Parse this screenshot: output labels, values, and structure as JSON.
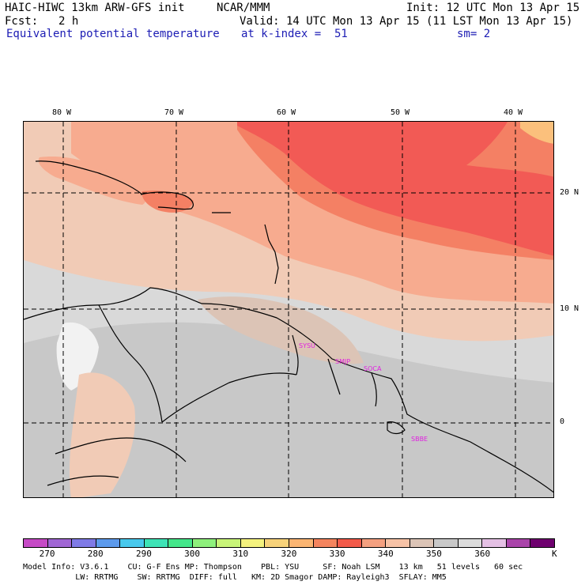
{
  "header": {
    "model_title": "HAIC-HIWC 13km ARW-GFS init",
    "org": "NCAR/MMM",
    "init": "Init: 12 UTC Mon 13 Apr 15",
    "fcst_label": "Fcst:",
    "fcst_value": "2 h",
    "valid": "Valid: 14 UTC Mon 13 Apr 15 (11 LST Mon 13 Apr 15)",
    "field": "Equivalent potential temperature",
    "level": "at k-index =  51",
    "smooth": "sm= 2"
  },
  "map": {
    "lon_labels": [
      "80 W",
      "70 W",
      "60 W",
      "50 W",
      "40 W"
    ],
    "lat_labels": [
      "20 N",
      "10 N",
      "0"
    ],
    "stations": [
      "SYSU",
      "SMJP",
      "SOCA",
      "SBBE"
    ],
    "colors": {
      "background": "#c8c8c8",
      "light_gray": "#d9d9d9",
      "warm_tan": "#f1cbb6",
      "salmon": "#f7ab8f",
      "orange_red": "#f48064",
      "red": "#f25a55",
      "peach": "#fbc07c",
      "white": "#f2f2f2",
      "station_label": "#e020e0"
    }
  },
  "colorbar": {
    "colors": [
      "#c64ac6",
      "#a066d4",
      "#7f7ae6",
      "#5c9aec",
      "#48c8ec",
      "#3ee3b6",
      "#44e68a",
      "#8ef07c",
      "#c8f478",
      "#f4f27e",
      "#f7d27a",
      "#fbb572",
      "#f4845e",
      "#f25a4a",
      "#f4a080",
      "#f7c2a6",
      "#dcc4b6",
      "#c8c8c8",
      "#dcdcdc",
      "#e4c0e4",
      "#aa44aa",
      "#6e006e"
    ],
    "tick_labels": [
      "270",
      "280",
      "290",
      "300",
      "310",
      "320",
      "330",
      "340",
      "350",
      "360"
    ],
    "unit": "K"
  },
  "footer": {
    "line1": "Model Info: V3.6.1    CU: G-F Ens MP: Thompson    PBL: YSU     SF: Noah LSM    13 km   51 levels   60 sec",
    "line2": "           LW: RRTMG    SW: RRTMG  DIFF: full   KM: 2D Smagor DAMP: Rayleigh3  SFLAY: MM5"
  }
}
